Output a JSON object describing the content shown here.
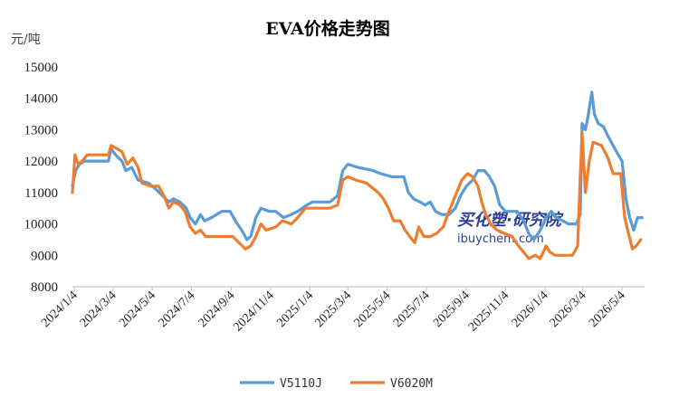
{
  "chart_data": {
    "type": "line",
    "title": "EVA价格走势图",
    "unit_label": "元/吨",
    "ylim": [
      8000,
      15000
    ],
    "y_ticks": [
      8000,
      9000,
      10000,
      11000,
      12000,
      13000,
      14000,
      15000
    ],
    "x_range": [
      "2024-01-01",
      "2026-06-08"
    ],
    "x_tick_labels": [
      "2024/1/4",
      "2024/3/4",
      "2024/5/4",
      "2024/7/4",
      "2024/9/4",
      "2024/11/4",
      "2025/1/4",
      "2025/3/4",
      "2025/5/4",
      "2025/7/4",
      "2025/9/4",
      "2025/11/4",
      "2026/1/4",
      "2026/3/4",
      "2026/5/4"
    ],
    "x_tick_dates": [
      "2024-01-04",
      "2024-03-04",
      "2024-05-04",
      "2024-07-04",
      "2024-09-04",
      "2024-11-04",
      "2025-01-04",
      "2025-03-04",
      "2025-05-04",
      "2025-07-04",
      "2025-09-04",
      "2025-11-04",
      "2026-01-04",
      "2026-03-04",
      "2026-05-04"
    ],
    "grid": false,
    "legend_position": "bottom",
    "series": [
      {
        "name": "V5110J",
        "color": "#5b9bd5",
        "points": [
          [
            "2024-01-01",
            11200
          ],
          [
            "2024-01-06",
            11700
          ],
          [
            "2024-01-12",
            11900
          ],
          [
            "2024-01-20",
            12000
          ],
          [
            "2024-02-26",
            12000
          ],
          [
            "2024-03-01",
            12400
          ],
          [
            "2024-03-08",
            12200
          ],
          [
            "2024-03-18",
            12000
          ],
          [
            "2024-03-24",
            11700
          ],
          [
            "2024-04-02",
            11800
          ],
          [
            "2024-04-12",
            11400
          ],
          [
            "2024-04-28",
            11300
          ],
          [
            "2024-05-10",
            11100
          ],
          [
            "2024-05-20",
            10900
          ],
          [
            "2024-05-30",
            10700
          ],
          [
            "2024-06-06",
            10800
          ],
          [
            "2024-06-16",
            10700
          ],
          [
            "2024-06-26",
            10500
          ],
          [
            "2024-07-02",
            10200
          ],
          [
            "2024-07-10",
            10000
          ],
          [
            "2024-07-18",
            10300
          ],
          [
            "2024-07-24",
            10100
          ],
          [
            "2024-08-04",
            10200
          ],
          [
            "2024-08-12",
            10300
          ],
          [
            "2024-08-20",
            10400
          ],
          [
            "2024-09-02",
            10400
          ],
          [
            "2024-09-10",
            10100
          ],
          [
            "2024-09-20",
            9800
          ],
          [
            "2024-09-28",
            9500
          ],
          [
            "2024-10-04",
            9600
          ],
          [
            "2024-10-12",
            10200
          ],
          [
            "2024-10-20",
            10500
          ],
          [
            "2024-11-02",
            10400
          ],
          [
            "2024-11-12",
            10400
          ],
          [
            "2024-11-24",
            10200
          ],
          [
            "2024-12-06",
            10300
          ],
          [
            "2024-12-16",
            10400
          ],
          [
            "2024-12-30",
            10600
          ],
          [
            "2025-01-08",
            10700
          ],
          [
            "2025-02-04",
            10700
          ],
          [
            "2025-02-16",
            10900
          ],
          [
            "2025-02-24",
            11700
          ],
          [
            "2025-03-04",
            11900
          ],
          [
            "2025-03-20",
            11800
          ],
          [
            "2025-04-12",
            11700
          ],
          [
            "2025-04-24",
            11600
          ],
          [
            "2025-05-12",
            11500
          ],
          [
            "2025-05-30",
            11500
          ],
          [
            "2025-06-06",
            11000
          ],
          [
            "2025-06-14",
            10800
          ],
          [
            "2025-06-24",
            10700
          ],
          [
            "2025-07-02",
            10600
          ],
          [
            "2025-07-10",
            10700
          ],
          [
            "2025-07-18",
            10400
          ],
          [
            "2025-07-28",
            10300
          ],
          [
            "2025-08-08",
            10300
          ],
          [
            "2025-08-18",
            10500
          ],
          [
            "2025-08-26",
            10900
          ],
          [
            "2025-09-04",
            11200
          ],
          [
            "2025-09-14",
            11400
          ],
          [
            "2025-09-22",
            11700
          ],
          [
            "2025-10-02",
            11700
          ],
          [
            "2025-10-10",
            11500
          ],
          [
            "2025-10-18",
            11200
          ],
          [
            "2025-10-26",
            10600
          ],
          [
            "2025-11-04",
            10400
          ],
          [
            "2025-11-22",
            10400
          ],
          [
            "2025-12-02",
            10100
          ],
          [
            "2025-12-10",
            9700
          ],
          [
            "2025-12-18",
            9500
          ],
          [
            "2025-12-28",
            9800
          ],
          [
            "2026-01-06",
            10200
          ],
          [
            "2026-01-14",
            10400
          ],
          [
            "2026-01-22",
            10200
          ],
          [
            "2026-02-10",
            10000
          ],
          [
            "2026-02-22",
            10000
          ],
          [
            "2026-02-28",
            10300
          ],
          [
            "2026-03-03",
            13200
          ],
          [
            "2026-03-08",
            13000
          ],
          [
            "2026-03-12",
            13400
          ],
          [
            "2026-03-18",
            14200
          ],
          [
            "2026-03-22",
            13500
          ],
          [
            "2026-03-28",
            13200
          ],
          [
            "2026-04-05",
            13100
          ],
          [
            "2026-04-12",
            12800
          ],
          [
            "2026-04-20",
            12500
          ],
          [
            "2026-04-28",
            12200
          ],
          [
            "2026-05-04",
            12000
          ],
          [
            "2026-05-10",
            10800
          ],
          [
            "2026-05-16",
            10200
          ],
          [
            "2026-05-22",
            9800
          ],
          [
            "2026-05-28",
            10200
          ],
          [
            "2026-06-04",
            10200
          ]
        ]
      },
      {
        "name": "V6020M",
        "color": "#ed7d31",
        "points": [
          [
            "2024-01-01",
            11000
          ],
          [
            "2024-01-05",
            12200
          ],
          [
            "2024-01-10",
            11900
          ],
          [
            "2024-01-16",
            12000
          ],
          [
            "2024-01-24",
            12200
          ],
          [
            "2024-02-26",
            12200
          ],
          [
            "2024-03-01",
            12500
          ],
          [
            "2024-03-10",
            12400
          ],
          [
            "2024-03-18",
            12300
          ],
          [
            "2024-03-26",
            11900
          ],
          [
            "2024-04-04",
            12100
          ],
          [
            "2024-04-12",
            11800
          ],
          [
            "2024-04-18",
            11300
          ],
          [
            "2024-05-02",
            11200
          ],
          [
            "2024-05-14",
            11200
          ],
          [
            "2024-05-22",
            10900
          ],
          [
            "2024-05-30",
            10500
          ],
          [
            "2024-06-06",
            10700
          ],
          [
            "2024-06-16",
            10600
          ],
          [
            "2024-06-24",
            10400
          ],
          [
            "2024-07-02",
            9900
          ],
          [
            "2024-07-10",
            9700
          ],
          [
            "2024-07-18",
            9800
          ],
          [
            "2024-07-26",
            9600
          ],
          [
            "2024-09-06",
            9600
          ],
          [
            "2024-09-16",
            9400
          ],
          [
            "2024-09-26",
            9200
          ],
          [
            "2024-10-04",
            9300
          ],
          [
            "2024-10-12",
            9600
          ],
          [
            "2024-10-20",
            10000
          ],
          [
            "2024-10-28",
            9800
          ],
          [
            "2024-11-12",
            9900
          ],
          [
            "2024-11-22",
            10100
          ],
          [
            "2024-12-06",
            10000
          ],
          [
            "2024-12-16",
            10200
          ],
          [
            "2024-12-28",
            10500
          ],
          [
            "2025-01-16",
            10500
          ],
          [
            "2025-02-04",
            10500
          ],
          [
            "2025-02-16",
            10600
          ],
          [
            "2025-02-24",
            11400
          ],
          [
            "2025-03-04",
            11500
          ],
          [
            "2025-03-16",
            11400
          ],
          [
            "2025-04-02",
            11300
          ],
          [
            "2025-04-20",
            11000
          ],
          [
            "2025-04-28",
            10800
          ],
          [
            "2025-05-06",
            10500
          ],
          [
            "2025-05-14",
            10100
          ],
          [
            "2025-05-24",
            10100
          ],
          [
            "2025-06-01",
            9800
          ],
          [
            "2025-06-08",
            9600
          ],
          [
            "2025-06-16",
            9400
          ],
          [
            "2025-06-22",
            9900
          ],
          [
            "2025-06-30",
            9600
          ],
          [
            "2025-07-10",
            9600
          ],
          [
            "2025-07-20",
            9700
          ],
          [
            "2025-07-30",
            9900
          ],
          [
            "2025-08-08",
            10400
          ],
          [
            "2025-08-18",
            10900
          ],
          [
            "2025-08-28",
            11400
          ],
          [
            "2025-09-06",
            11600
          ],
          [
            "2025-09-14",
            11500
          ],
          [
            "2025-09-22",
            11200
          ],
          [
            "2025-09-28",
            10700
          ],
          [
            "2025-10-04",
            10300
          ],
          [
            "2025-10-12",
            10000
          ],
          [
            "2025-10-22",
            9800
          ],
          [
            "2025-11-02",
            9700
          ],
          [
            "2025-11-14",
            9600
          ],
          [
            "2025-11-24",
            9300
          ],
          [
            "2025-12-02",
            9100
          ],
          [
            "2025-12-10",
            8900
          ],
          [
            "2025-12-20",
            9000
          ],
          [
            "2025-12-28",
            8900
          ],
          [
            "2026-01-06",
            9300
          ],
          [
            "2026-01-12",
            9100
          ],
          [
            "2026-01-20",
            9000
          ],
          [
            "2026-02-16",
            9000
          ],
          [
            "2026-02-24",
            9300
          ],
          [
            "2026-02-28",
            11500
          ],
          [
            "2026-03-03",
            12900
          ],
          [
            "2026-03-08",
            11000
          ],
          [
            "2026-03-14",
            12000
          ],
          [
            "2026-03-20",
            12600
          ],
          [
            "2026-04-02",
            12500
          ],
          [
            "2026-04-12",
            12100
          ],
          [
            "2026-04-20",
            11600
          ],
          [
            "2026-05-02",
            11600
          ],
          [
            "2026-05-08",
            10200
          ],
          [
            "2026-05-14",
            9700
          ],
          [
            "2026-05-20",
            9200
          ],
          [
            "2026-05-26",
            9300
          ],
          [
            "2026-06-02",
            9500
          ]
        ]
      }
    ]
  },
  "watermark": {
    "cn_text": "买化塑·研究院",
    "en_text": "ibuychem.com"
  }
}
